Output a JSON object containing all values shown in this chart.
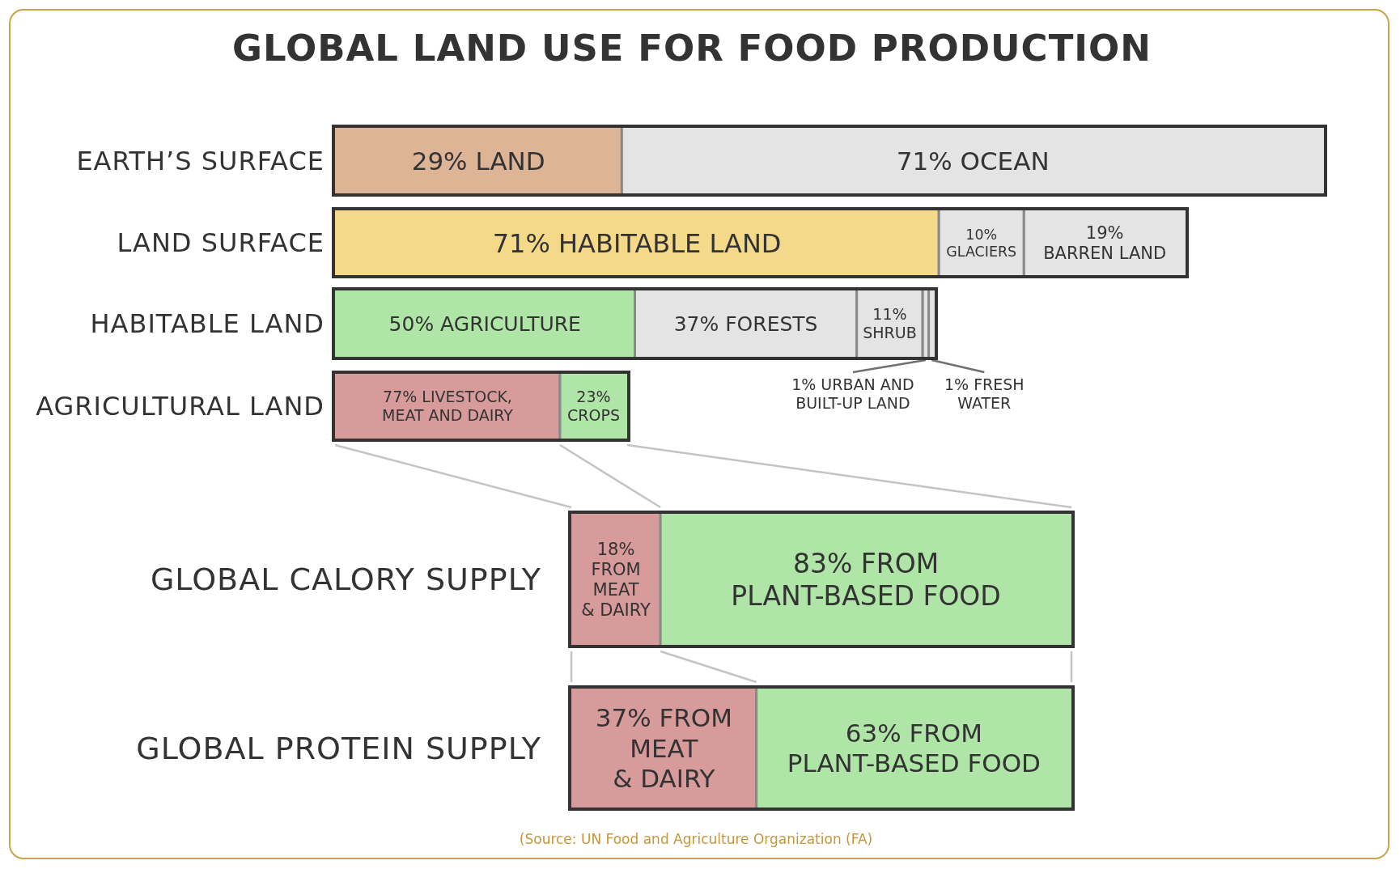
{
  "chart_data": [
    {
      "type": "bar",
      "orientation": "horizontal",
      "stacked": true,
      "title": "GLOBAL LAND USE FOR FOOD PRODUCTION",
      "categories": [
        "EARTH’S SURFACE"
      ],
      "tick_labels": "y",
      "series": [
        {
          "color": "#ddb496",
          "values": [
            29
          ],
          "value_labels": [
            "29% LAND"
          ]
        },
        {
          "color": "#e4e4e4",
          "values": [
            71
          ],
          "value_labels": [
            "71% OCEAN"
          ]
        }
      ]
    },
    {
      "type": "bar",
      "orientation": "horizontal",
      "stacked": true,
      "categories": [
        "LAND SURFACE"
      ],
      "tick_labels": "y",
      "series": [
        {
          "color": "#f5d98b",
          "values": [
            71
          ],
          "value_labels": [
            "71% HABITABLE LAND"
          ]
        },
        {
          "color": "#e4e4e4",
          "values": [
            10
          ],
          "value_labels": [
            "10%\nGLACIERS"
          ]
        },
        {
          "color": "#e4e4e4",
          "values": [
            19
          ],
          "value_labels": [
            "19%\nBARREN LAND"
          ]
        }
      ]
    },
    {
      "type": "bar",
      "orientation": "horizontal",
      "stacked": true,
      "categories": [
        "HABITABLE LAND"
      ],
      "tick_labels": "y",
      "series": [
        {
          "color": "#afe5a6",
          "values": [
            50
          ],
          "value_labels": [
            "50% AGRICULTURE"
          ]
        },
        {
          "color": "#e4e4e4",
          "values": [
            37
          ],
          "value_labels": [
            "37% FORESTS"
          ]
        },
        {
          "color": "#e4e4e4",
          "values": [
            11
          ],
          "value_labels": [
            "11%\nSHRUB"
          ]
        },
        {
          "color": "#e4e4e4",
          "values": [
            1
          ],
          "value_labels": [
            "1% URBAN AND\nBUILT-UP LAND"
          ]
        },
        {
          "color": "#e4e4e4",
          "values": [
            1
          ],
          "value_labels": [
            "1% FRESH\nWATER"
          ]
        }
      ]
    },
    {
      "type": "bar",
      "orientation": "horizontal",
      "stacked": true,
      "categories": [
        "AGRICULTURAL LAND"
      ],
      "tick_labels": "y",
      "series": [
        {
          "color": "#d89b9b",
          "values": [
            77
          ],
          "value_labels": [
            "77% LIVESTOCK,\nMEAT AND DAIRY"
          ]
        },
        {
          "color": "#afe5a6",
          "values": [
            23
          ],
          "value_labels": [
            "23%\nCROPS"
          ]
        }
      ]
    },
    {
      "type": "bar",
      "orientation": "horizontal",
      "stacked": true,
      "categories": [
        "GLOBAL CALORY SUPPLY"
      ],
      "tick_labels": "y",
      "series": [
        {
          "color": "#d89b9b",
          "values": [
            18
          ],
          "value_labels": [
            "18%\nFROM\nMEAT\n& DAIRY"
          ]
        },
        {
          "color": "#afe5a6",
          "values": [
            83
          ],
          "value_labels": [
            "83% FROM\nPLANT-BASED FOOD"
          ]
        }
      ]
    },
    {
      "type": "bar",
      "orientation": "horizontal",
      "stacked": true,
      "categories": [
        "GLOBAL PROTEIN SUPPLY"
      ],
      "tick_labels": "y",
      "series": [
        {
          "color": "#d89b9b",
          "values": [
            37
          ],
          "value_labels": [
            "37% FROM\nMEAT\n& DAIRY"
          ]
        },
        {
          "color": "#afe5a6",
          "values": [
            63
          ],
          "value_labels": [
            "63% FROM\nPLANT-BASED FOOD"
          ]
        }
      ],
      "annotations": [
        "(Source: UN Food and Agriculture Organization (FA)"
      ]
    }
  ]
}
